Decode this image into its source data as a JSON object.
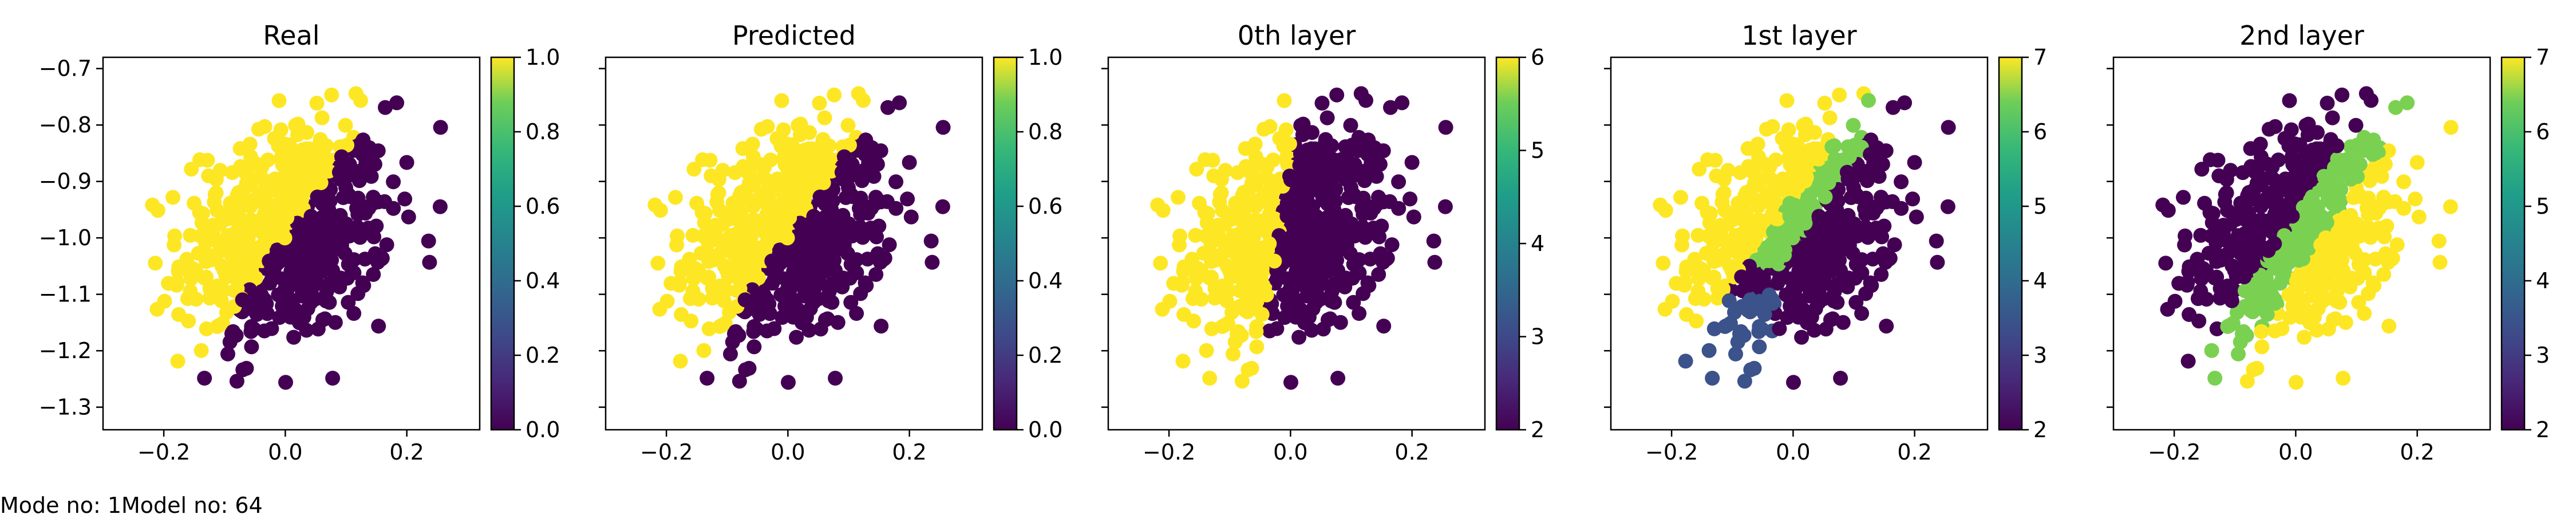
{
  "footer": {
    "mode_text": "Mode no: 1",
    "model_text": "Model no: 64"
  },
  "palette": {
    "dark": "#440154",
    "blue": "#3b528b",
    "green": "#7ad151",
    "yellow": "#fde725"
  },
  "chart_data": [
    {
      "type": "scatter",
      "title": "Real",
      "xlabel": "",
      "ylabel": "",
      "xlim": [
        -0.3,
        0.32
      ],
      "ylim": [
        -1.34,
        -0.68
      ],
      "xticks": [
        "−0.2",
        "0.0",
        "0.2"
      ],
      "yticks": [
        "−0.7",
        "−0.8",
        "−0.9",
        "−1.0",
        "−1.1",
        "−1.2",
        "−1.3"
      ],
      "show_yticklabels": true,
      "partition": "real",
      "colorbar": {
        "min": 0.0,
        "max": 1.0,
        "ticks": [
          "0.0",
          "0.2",
          "0.4",
          "0.6",
          "0.8",
          "1.0"
        ]
      },
      "grid": false
    },
    {
      "type": "scatter",
      "title": "Predicted",
      "xlabel": "",
      "ylabel": "",
      "xlim": [
        -0.3,
        0.32
      ],
      "ylim": [
        -1.34,
        -0.68
      ],
      "xticks": [
        "−0.2",
        "0.0",
        "0.2"
      ],
      "show_yticklabels": false,
      "partition": "real",
      "colorbar": {
        "min": 0.0,
        "max": 1.0,
        "ticks": [
          "0.0",
          "0.2",
          "0.4",
          "0.6",
          "0.8",
          "1.0"
        ]
      },
      "grid": false
    },
    {
      "type": "scatter",
      "title": "0th layer",
      "xlabel": "",
      "ylabel": "",
      "xlim": [
        -0.3,
        0.32
      ],
      "ylim": [
        -1.34,
        -0.68
      ],
      "xticks": [
        "−0.2",
        "0.0",
        "0.2"
      ],
      "show_yticklabels": false,
      "partition": "layer0",
      "colorbar": {
        "min": 2,
        "max": 6,
        "ticks": [
          "2",
          "3",
          "4",
          "5",
          "6"
        ]
      },
      "grid": false
    },
    {
      "type": "scatter",
      "title": "1st layer",
      "xlabel": "",
      "ylabel": "",
      "xlim": [
        -0.3,
        0.32
      ],
      "ylim": [
        -1.34,
        -0.68
      ],
      "xticks": [
        "−0.2",
        "0.0",
        "0.2"
      ],
      "show_yticklabels": false,
      "partition": "layer1",
      "colorbar": {
        "min": 2,
        "max": 7,
        "ticks": [
          "2",
          "3",
          "4",
          "5",
          "6",
          "7"
        ]
      },
      "grid": false
    },
    {
      "type": "scatter",
      "title": "2nd layer",
      "xlabel": "",
      "ylabel": "",
      "xlim": [
        -0.3,
        0.32
      ],
      "ylim": [
        -1.34,
        -0.68
      ],
      "xticks": [
        "−0.2",
        "0.0",
        "0.2"
      ],
      "show_yticklabels": false,
      "partition": "layer2",
      "colorbar": {
        "min": 2,
        "max": 7,
        "ticks": [
          "2",
          "3",
          "4",
          "5",
          "6",
          "7"
        ]
      },
      "grid": false
    }
  ]
}
